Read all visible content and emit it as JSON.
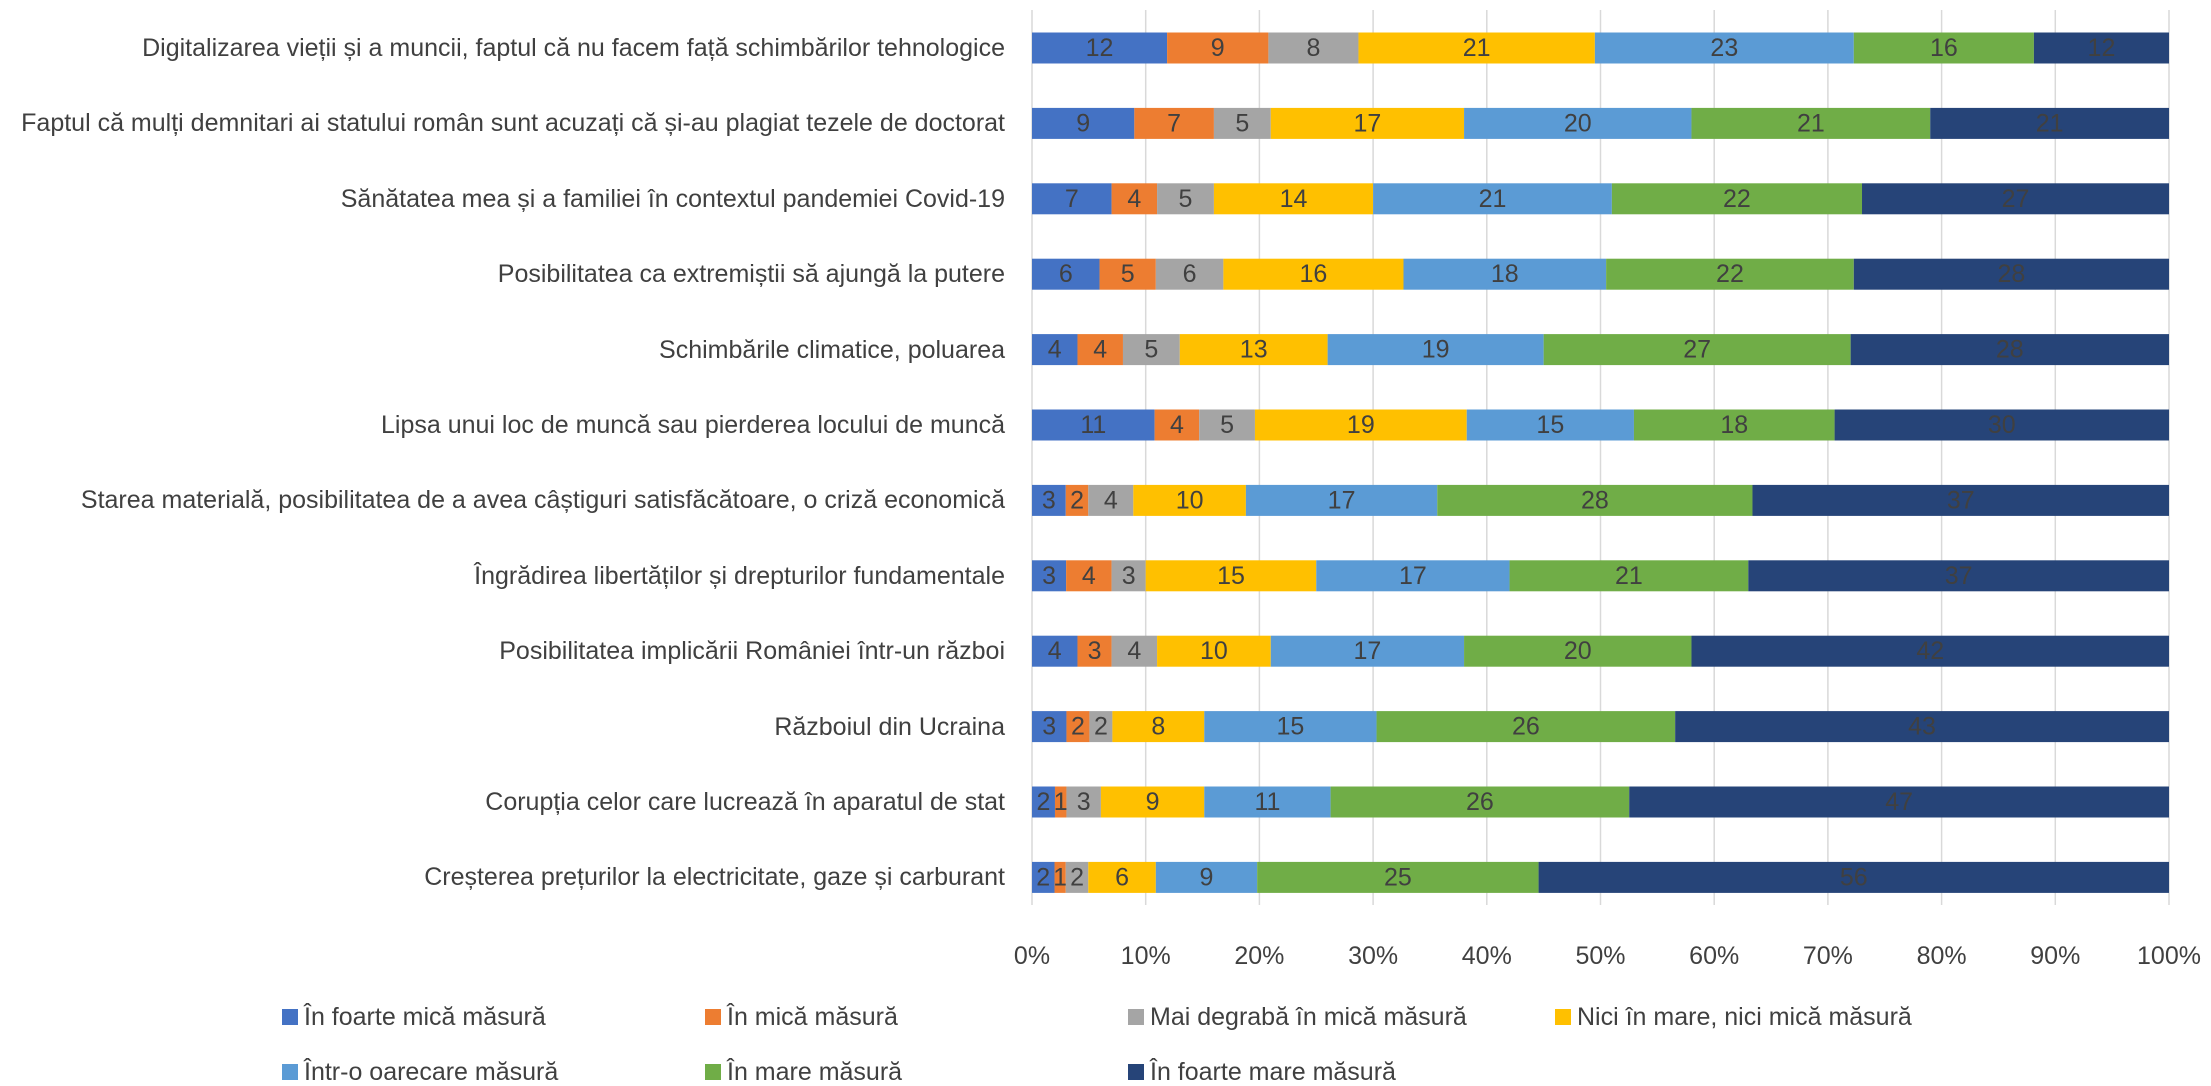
{
  "chart_data": {
    "type": "bar",
    "orientation": "horizontal",
    "stacked": "percent",
    "categories": [
      "Digitalizarea vieții și a muncii, faptul că nu facem față schimbărilor tehnologice",
      "Faptul că mulți demnitari ai statului român sunt acuzați că și-au plagiat tezele de doctorat",
      "Sănătatea mea și a familiei în contextul pandemiei Covid-19",
      "Posibilitatea ca extremiștii să ajungă la putere",
      "Schimbările climatice, poluarea",
      "Lipsa unui loc de muncă sau pierderea locului de muncă",
      "Starea materială, posibilitatea de a avea câștiguri satisfăcătoare, o criză economică",
      "Îngrădirea libertăților și drepturilor fundamentale",
      "Posibilitatea implicării României într-un război",
      "Războiul din Ucraina",
      "Corupția celor care lucrează în aparatul de stat",
      "Creșterea prețurilor la electricitate, gaze și carburant"
    ],
    "series": [
      {
        "name": "În foarte mică măsură",
        "color": "#4472c4",
        "values": [
          12,
          9,
          7,
          6,
          4,
          11,
          3,
          3,
          4,
          3,
          2,
          2
        ]
      },
      {
        "name": "În mică măsură",
        "color": "#ed7d31",
        "values": [
          9,
          7,
          4,
          5,
          4,
          4,
          2,
          4,
          3,
          2,
          1,
          1
        ]
      },
      {
        "name": "Mai degrabă în mică măsură",
        "color": "#a5a5a5",
        "values": [
          8,
          5,
          5,
          6,
          5,
          5,
          4,
          3,
          4,
          2,
          3,
          2
        ]
      },
      {
        "name": "Nici în mare, nici mică măsură",
        "color": "#ffc000",
        "values": [
          21,
          17,
          14,
          16,
          13,
          19,
          10,
          15,
          10,
          8,
          9,
          6
        ]
      },
      {
        "name": "Într-o oarecare măsură",
        "color": "#5b9bd5",
        "values": [
          23,
          20,
          21,
          18,
          19,
          15,
          17,
          17,
          17,
          15,
          11,
          9
        ]
      },
      {
        "name": "În mare măsură",
        "color": "#70ad47",
        "values": [
          16,
          21,
          22,
          22,
          27,
          18,
          28,
          21,
          20,
          26,
          26,
          25
        ]
      },
      {
        "name": "În foarte mare măsură",
        "color": "#264478",
        "values": [
          12,
          21,
          27,
          28,
          28,
          30,
          37,
          37,
          42,
          43,
          47,
          56
        ]
      }
    ],
    "xlim": [
      0,
      100
    ],
    "xticks": [
      {
        "value": 0,
        "label": "0%"
      },
      {
        "value": 10,
        "label": "10%"
      },
      {
        "value": 20,
        "label": "20%"
      },
      {
        "value": 30,
        "label": "30%"
      },
      {
        "value": 40,
        "label": "40%"
      },
      {
        "value": 50,
        "label": "50%"
      },
      {
        "value": 60,
        "label": "60%"
      },
      {
        "value": 70,
        "label": "70%"
      },
      {
        "value": 80,
        "label": "80%"
      },
      {
        "value": 90,
        "label": "90%"
      },
      {
        "value": 100,
        "label": "100%"
      }
    ],
    "grid": true,
    "legend": "bottom"
  }
}
